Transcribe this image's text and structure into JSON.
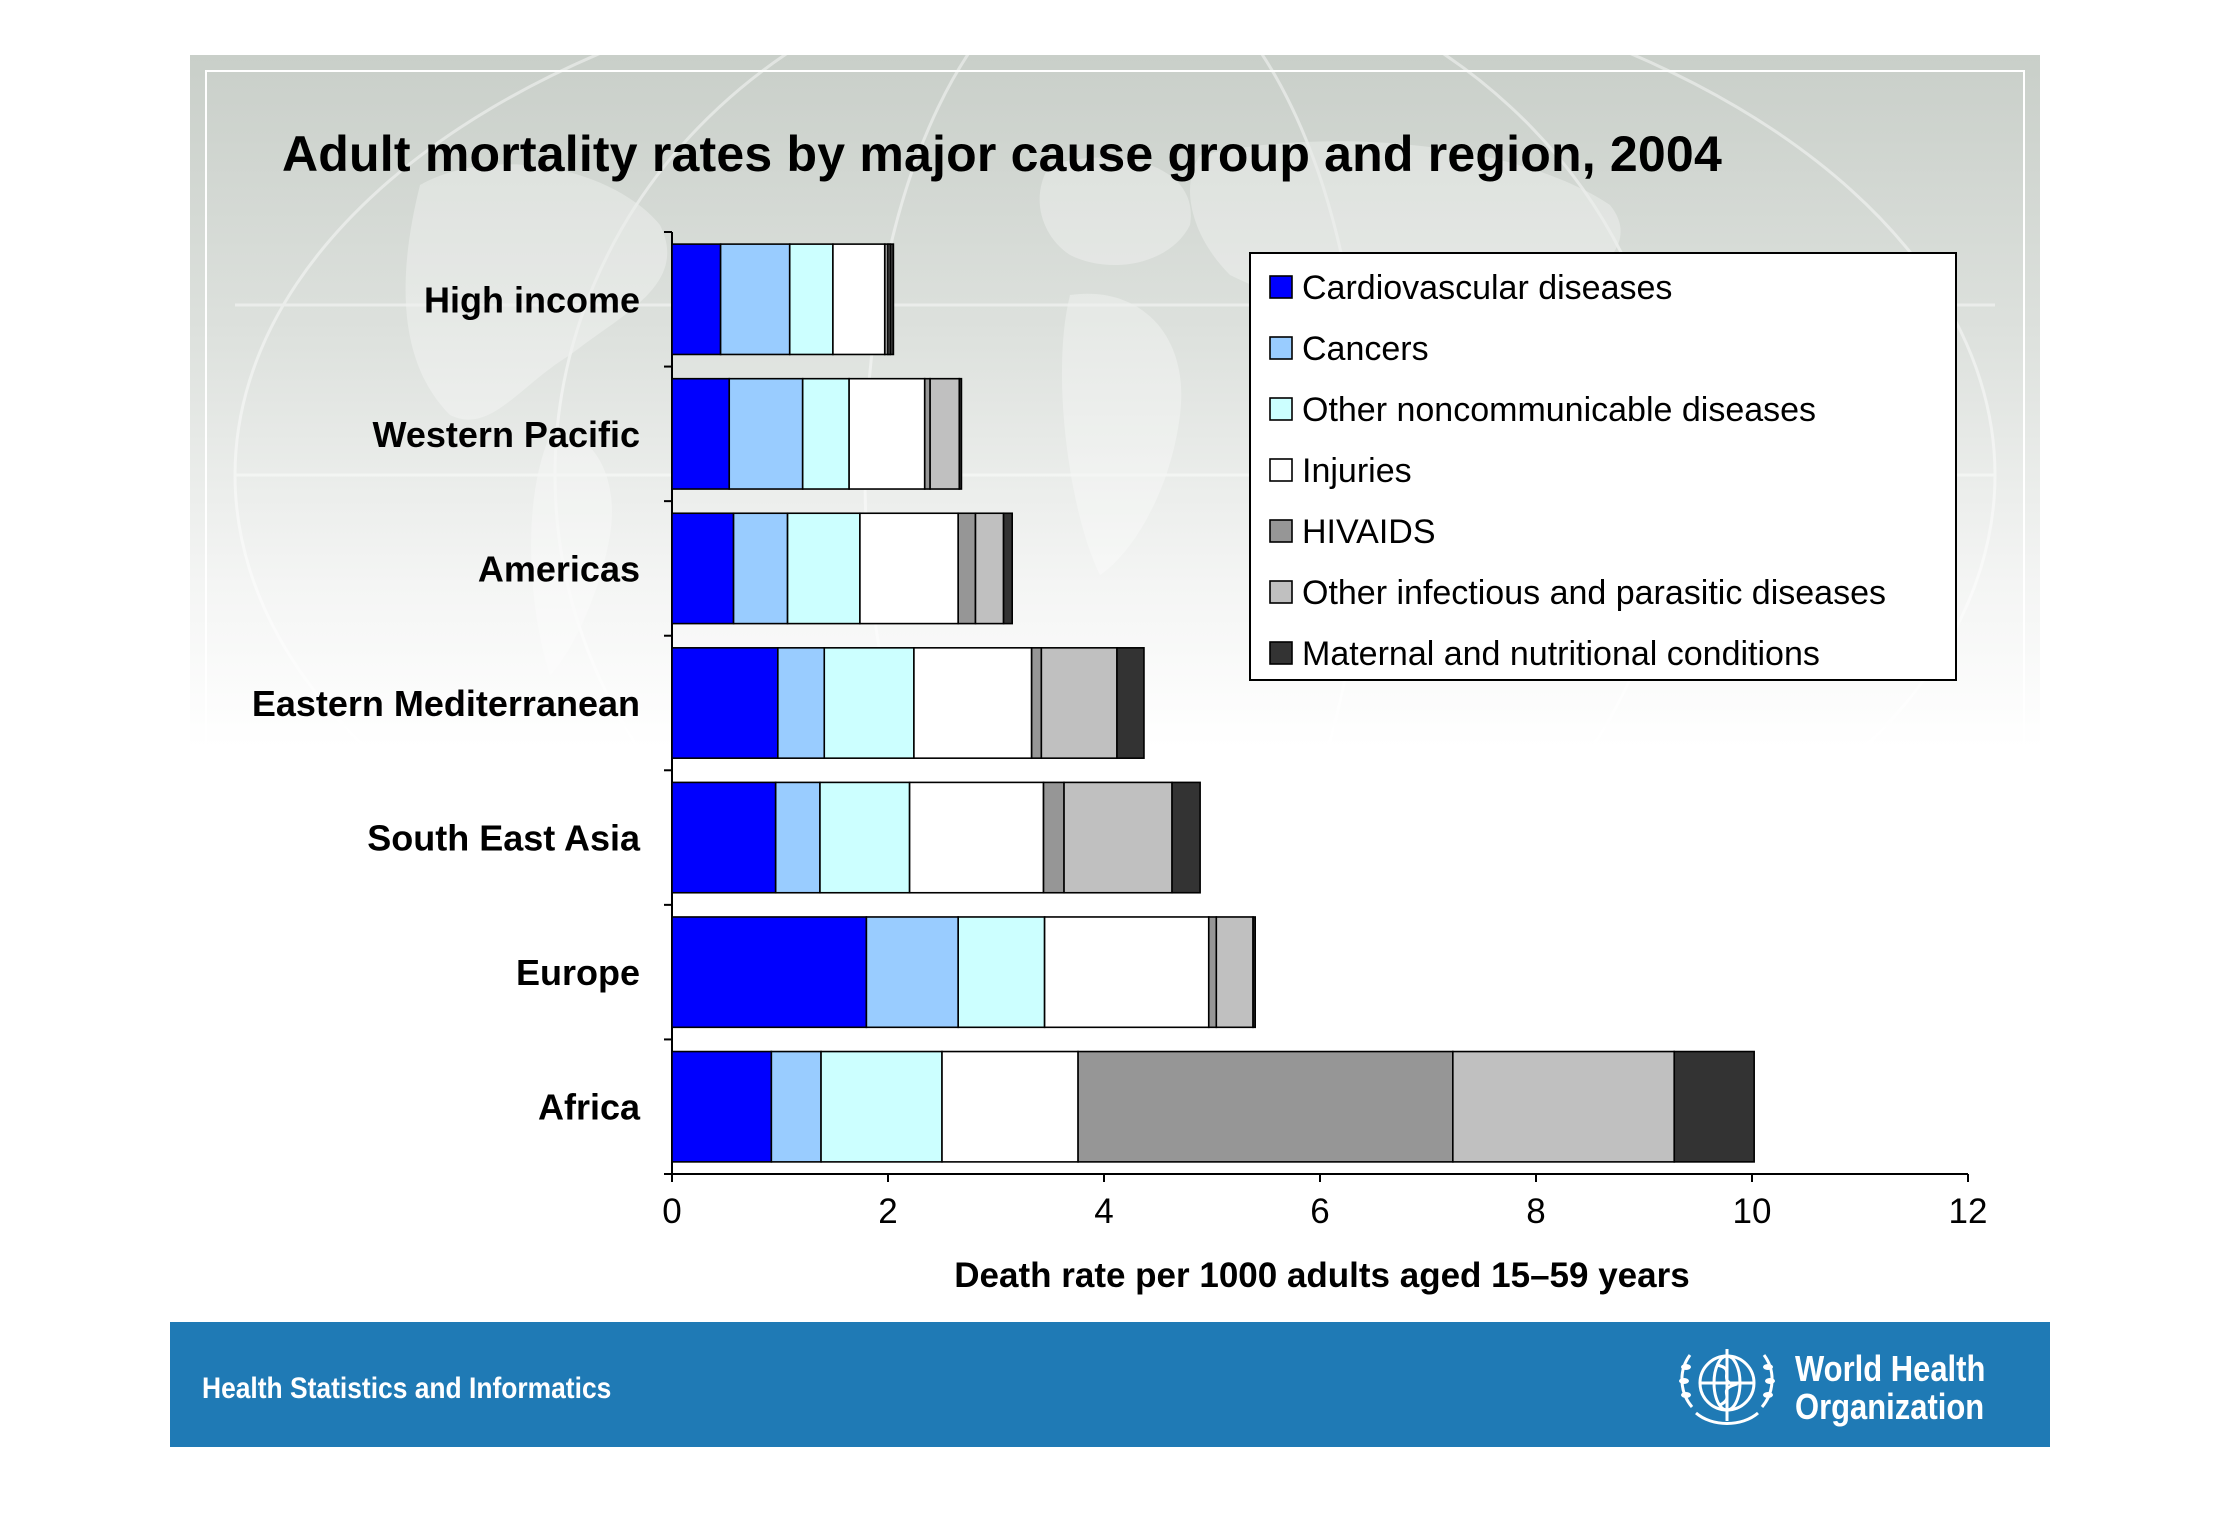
{
  "title": "Adult mortality rates by major cause group and region, 2004",
  "chart_data": {
    "type": "bar",
    "orientation": "horizontal",
    "stacked": true,
    "title": "Adult mortality rates by major cause group and region, 2004",
    "xlabel": "Death rate per 1000 adults aged 15–59 years",
    "ylabel": "",
    "xlim": [
      0,
      12
    ],
    "xticks": [
      "0",
      "2",
      "4",
      "6",
      "8",
      "10",
      "12"
    ],
    "legend_position": "top-right",
    "grid": false,
    "categories": [
      "High income",
      "Western Pacific",
      "Americas",
      "Eastern Mediterranean",
      "South East Asia",
      "Europe",
      "Africa"
    ],
    "series": [
      {
        "name": "Cardiovascular diseases",
        "color": "#0000ff",
        "values": [
          0.45,
          0.53,
          0.57,
          0.98,
          0.96,
          1.8,
          0.92
        ]
      },
      {
        "name": "Cancers",
        "color": "#99ccff",
        "values": [
          0.64,
          0.68,
          0.5,
          0.43,
          0.41,
          0.85,
          0.46
        ]
      },
      {
        "name": "Other noncommunicable diseases",
        "color": "#ccffff",
        "values": [
          0.4,
          0.43,
          0.67,
          0.83,
          0.83,
          0.8,
          1.12
        ]
      },
      {
        "name": "Injuries",
        "color": "#ffffff",
        "values": [
          0.48,
          0.7,
          0.91,
          1.09,
          1.24,
          1.52,
          1.26
        ]
      },
      {
        "name": "HIVAIDS",
        "color": "#969696",
        "values": [
          0.03,
          0.05,
          0.16,
          0.09,
          0.19,
          0.07,
          3.47
        ]
      },
      {
        "name": "Other infectious and parasitic diseases",
        "color": "#c0c0c0",
        "values": [
          0.02,
          0.27,
          0.26,
          0.7,
          1.0,
          0.34,
          2.05
        ]
      },
      {
        "name": "Maternal and nutritional conditions",
        "color": "#333333",
        "values": [
          0.03,
          0.02,
          0.08,
          0.25,
          0.26,
          0.02,
          0.74
        ]
      }
    ]
  },
  "footer": {
    "left_text": "Health Statistics and Informatics",
    "org_name_line1": "World Health",
    "org_name_line2": "Organization"
  },
  "logo": {
    "icon": "who-emblem-icon"
  }
}
